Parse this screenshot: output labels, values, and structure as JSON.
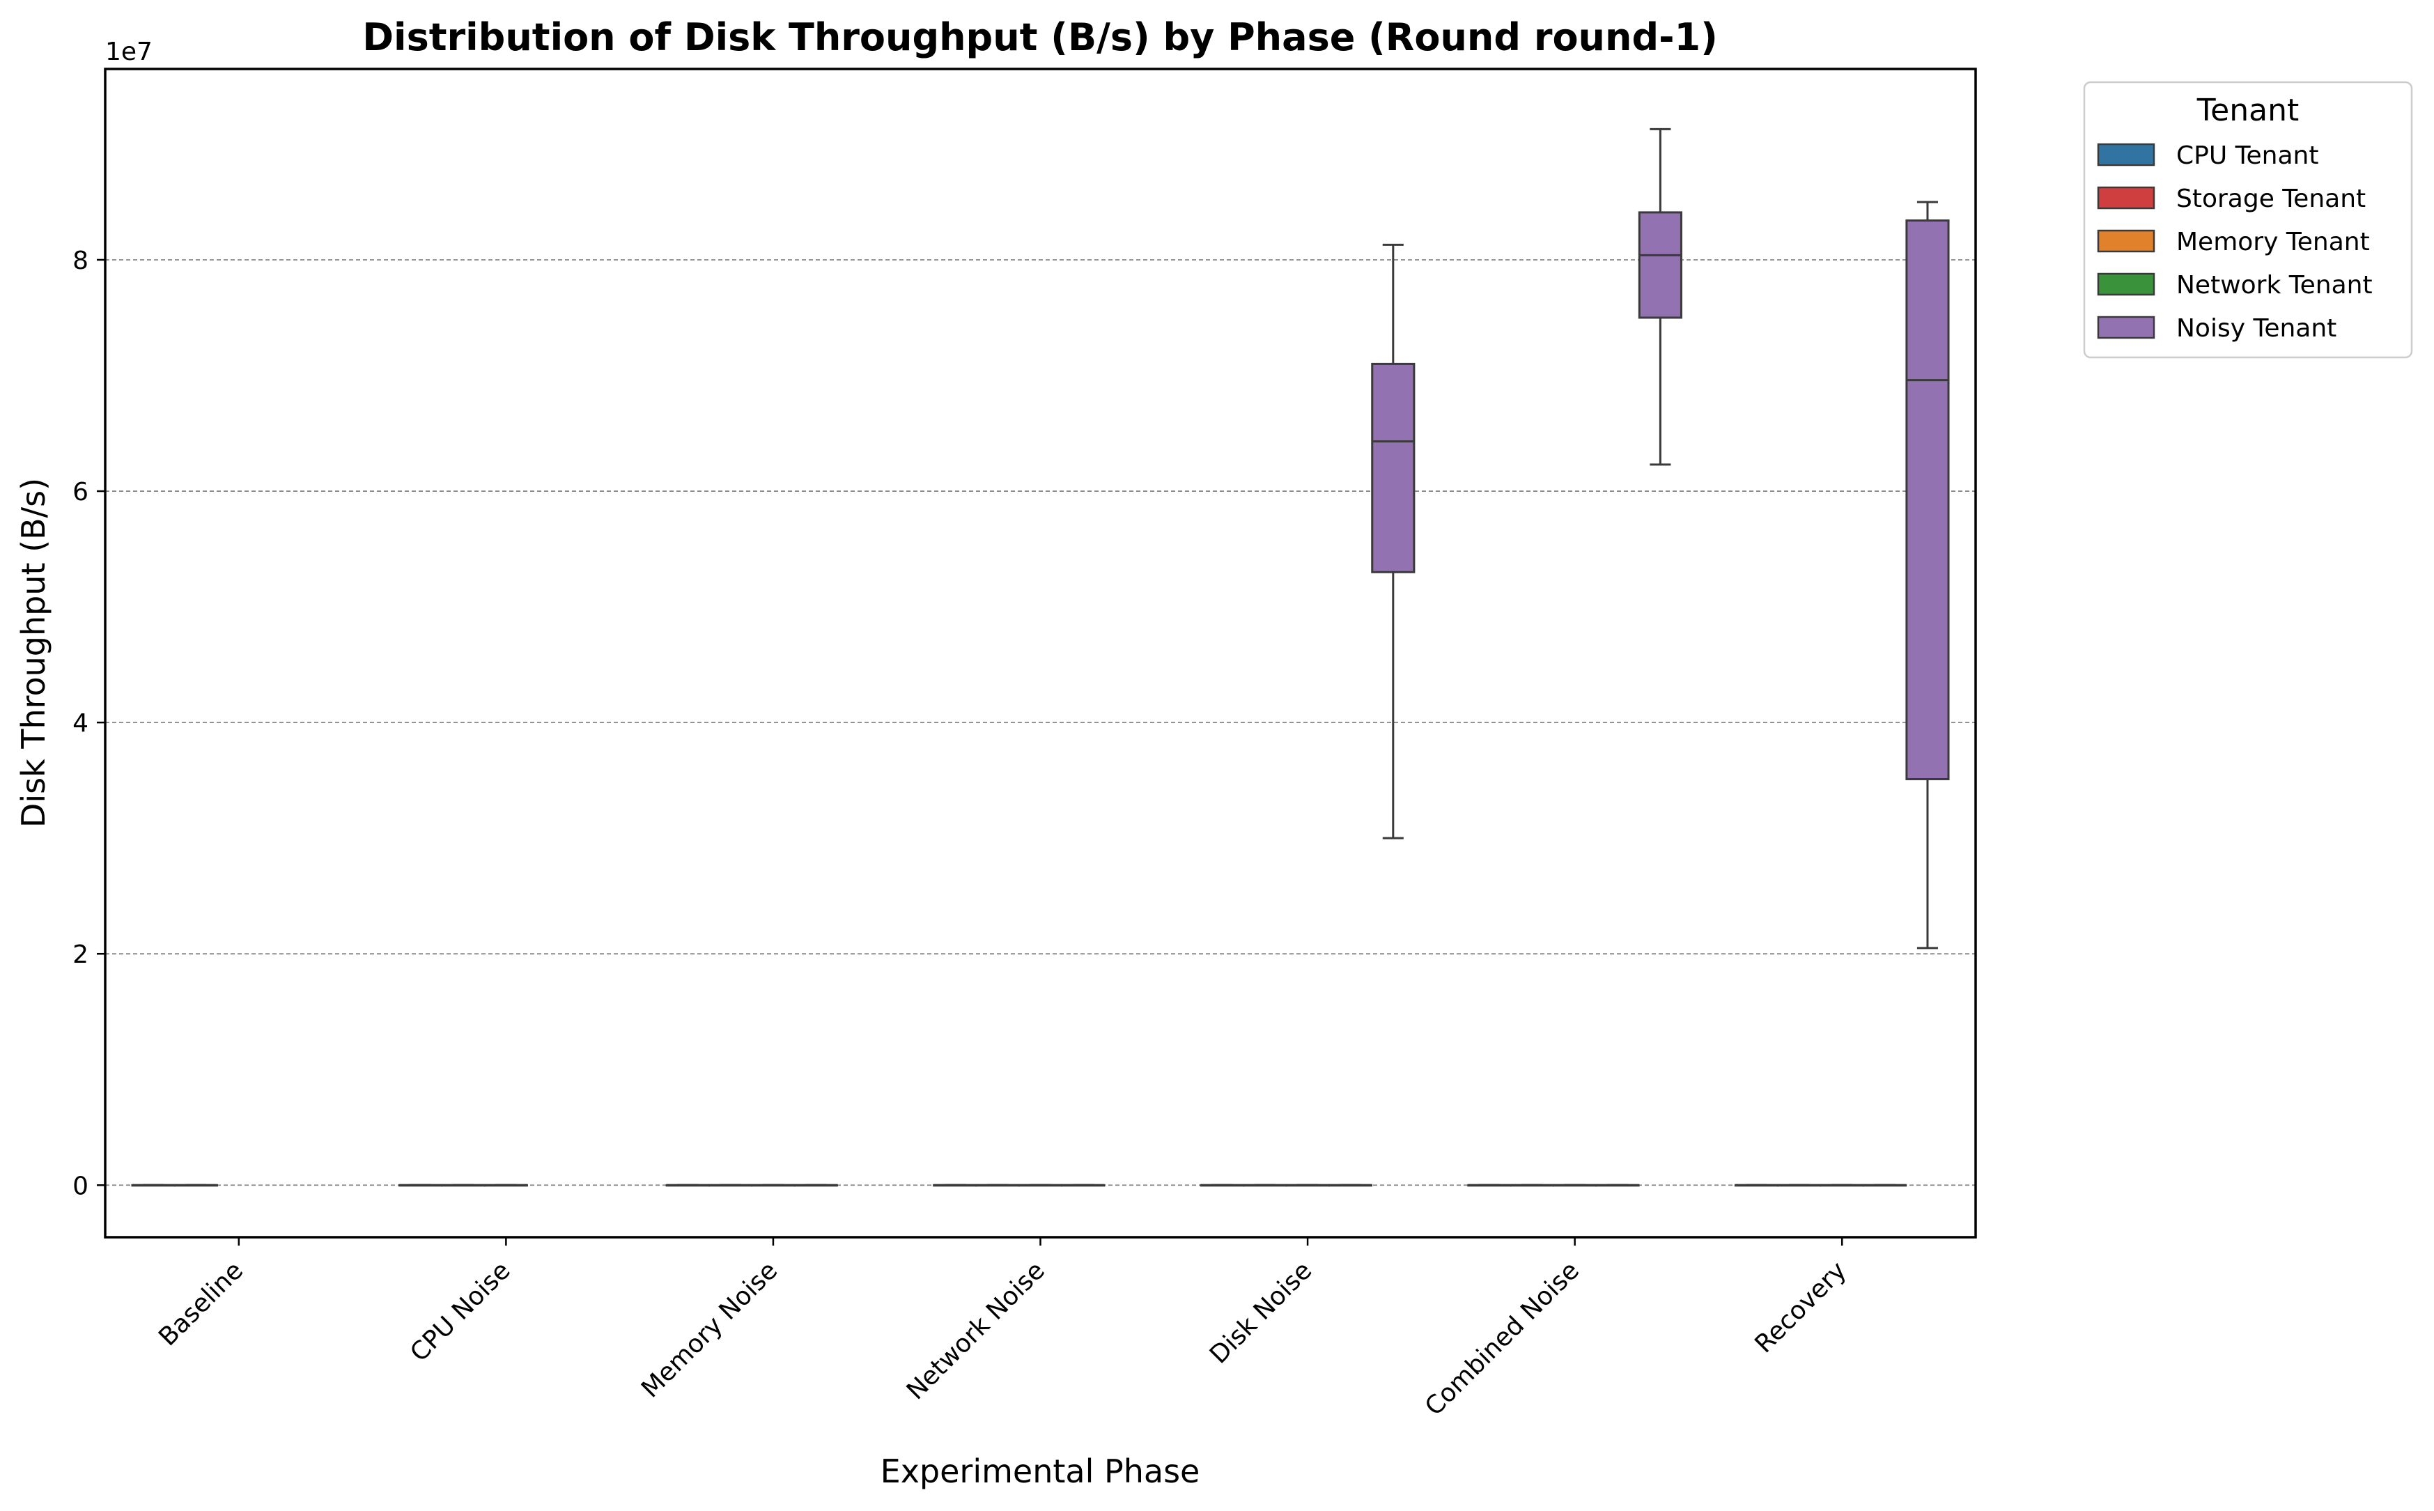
{
  "chart_data": {
    "type": "box",
    "title": "Distribution of Disk Throughput (B/s) by Phase (Round round-1)",
    "xlabel": "Experimental Phase",
    "ylabel": "Disk Throughput (B/s)",
    "y_offset_text": "1e7",
    "y_scale_factor": 10000000,
    "ylim": [
      -4500000,
      96500000
    ],
    "yticks": [
      0,
      20000000,
      40000000,
      60000000,
      80000000
    ],
    "ytick_labels": [
      "0",
      "2",
      "4",
      "6",
      "8"
    ],
    "grid": "y-dashed",
    "categories": [
      "Baseline",
      "CPU Noise",
      "Memory Noise",
      "Network Noise",
      "Disk Noise",
      "Combined Noise",
      "Recovery"
    ],
    "legend": {
      "title": "Tenant",
      "placement": "outside-top-right",
      "entries": [
        "CPU Tenant",
        "Storage Tenant",
        "Memory Tenant",
        "Network Tenant",
        "Noisy Tenant"
      ]
    },
    "series": [
      {
        "name": "CPU Tenant",
        "color": "#3274a1",
        "boxes": [
          {
            "min": 0,
            "q1": 0,
            "median": 0,
            "q3": 0,
            "max": 0
          },
          {
            "min": 0,
            "q1": 0,
            "median": 0,
            "q3": 0,
            "max": 0
          },
          {
            "min": 0,
            "q1": 0,
            "median": 0,
            "q3": 0,
            "max": 0
          },
          {
            "min": 0,
            "q1": 0,
            "median": 0,
            "q3": 0,
            "max": 0
          },
          {
            "min": 0,
            "q1": 0,
            "median": 0,
            "q3": 0,
            "max": 0
          },
          {
            "min": 0,
            "q1": 0,
            "median": 0,
            "q3": 0,
            "max": 0
          },
          {
            "min": 0,
            "q1": 0,
            "median": 0,
            "q3": 0,
            "max": 0
          }
        ]
      },
      {
        "name": "Storage Tenant",
        "color": "#d03f3f",
        "boxes": [
          {
            "min": 0,
            "q1": 0,
            "median": 0,
            "q3": 0,
            "max": 0
          },
          {
            "min": 0,
            "q1": 0,
            "median": 0,
            "q3": 0,
            "max": 0
          },
          {
            "min": 0,
            "q1": 0,
            "median": 0,
            "q3": 0,
            "max": 0
          },
          {
            "min": 0,
            "q1": 0,
            "median": 0,
            "q3": 0,
            "max": 0
          },
          {
            "min": 0,
            "q1": 0,
            "median": 0,
            "q3": 0,
            "max": 0
          },
          {
            "min": 0,
            "q1": 0,
            "median": 0,
            "q3": 0,
            "max": 0
          },
          {
            "min": 0,
            "q1": 0,
            "median": 0,
            "q3": 0,
            "max": 0
          }
        ]
      },
      {
        "name": "Memory Tenant",
        "color": "#e1812c",
        "boxes": [
          null,
          {
            "min": 0,
            "q1": 0,
            "median": 0,
            "q3": 0,
            "max": 0
          },
          {
            "min": 0,
            "q1": 0,
            "median": 0,
            "q3": 0,
            "max": 0
          },
          {
            "min": 0,
            "q1": 0,
            "median": 0,
            "q3": 0,
            "max": 0
          },
          {
            "min": 0,
            "q1": 0,
            "median": 0,
            "q3": 0,
            "max": 0
          },
          {
            "min": 0,
            "q1": 0,
            "median": 0,
            "q3": 0,
            "max": 0
          },
          {
            "min": 0,
            "q1": 0,
            "median": 0,
            "q3": 0,
            "max": 0
          }
        ]
      },
      {
        "name": "Network Tenant",
        "color": "#3a923a",
        "boxes": [
          null,
          null,
          {
            "min": 0,
            "q1": 0,
            "median": 0,
            "q3": 0,
            "max": 0
          },
          {
            "min": 0,
            "q1": 0,
            "median": 0,
            "q3": 0,
            "max": 0
          },
          {
            "min": 0,
            "q1": 0,
            "median": 0,
            "q3": 0,
            "max": 0
          },
          {
            "min": 0,
            "q1": 0,
            "median": 0,
            "q3": 0,
            "max": 0
          },
          {
            "min": 0,
            "q1": 0,
            "median": 0,
            "q3": 0,
            "max": 0
          }
        ]
      },
      {
        "name": "Noisy Tenant",
        "color": "#9372b2",
        "boxes": [
          null,
          null,
          null,
          null,
          {
            "min": 30000000,
            "q1": 53000000,
            "median": 64300000,
            "q3": 71000000,
            "max": 81300000
          },
          {
            "min": 62300000,
            "q1": 75000000,
            "median": 80400000,
            "q3": 84100000,
            "max": 91300000
          },
          {
            "min": 20500000,
            "q1": 35100000,
            "median": 69600000,
            "q3": 83400000,
            "max": 85000000
          }
        ]
      }
    ]
  }
}
